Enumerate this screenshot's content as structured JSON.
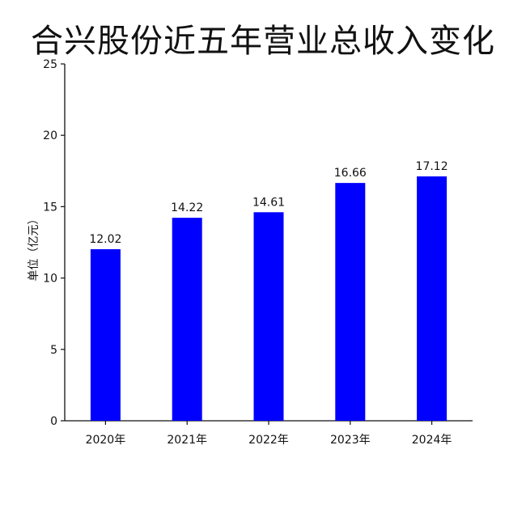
{
  "chart_data": {
    "type": "bar",
    "title": "合兴股份近五年营业总收入变化",
    "xlabel": "",
    "ylabel": "单位（亿元）",
    "categories": [
      "2020年",
      "2021年",
      "2022年",
      "2023年",
      "2024年"
    ],
    "values": [
      12.02,
      14.22,
      14.61,
      16.66,
      17.12
    ],
    "value_labels": [
      "12.02",
      "14.22",
      "14.61",
      "16.66",
      "17.12"
    ],
    "ylim": [
      0,
      25
    ],
    "yticks": [
      "0",
      "5",
      "10",
      "15",
      "20",
      "25"
    ],
    "bar_color": "#0000ff",
    "grid": false,
    "legend": "none"
  }
}
